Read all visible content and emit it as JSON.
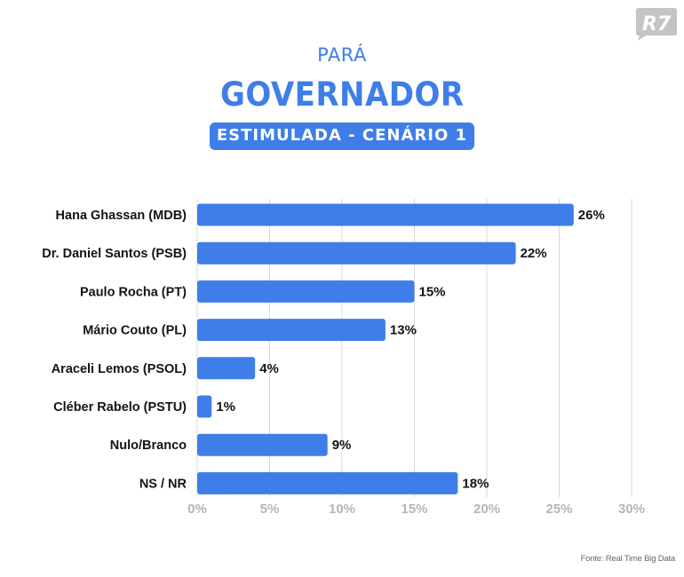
{
  "header": {
    "state": "PARÁ",
    "office": "GOVERNADOR",
    "scenario": "ESTIMULADA - CENÁRIO 1"
  },
  "logo": {
    "text": "R7",
    "color": "#c4c4c4"
  },
  "colors": {
    "bar": "#3f7ee8",
    "title": "#3f7ee8",
    "grid": "#d9d9d9",
    "tick": "#b5b5b5"
  },
  "chart_data": {
    "type": "bar",
    "orientation": "horizontal",
    "categories": [
      "Hana Ghassan (MDB)",
      "Dr. Daniel Santos (PSB)",
      "Paulo Rocha (PT)",
      "Mário Couto (PL)",
      "Araceli Lemos (PSOL)",
      "Cléber Rabelo (PSTU)",
      "Nulo/Branco",
      "NS / NR"
    ],
    "values": [
      26,
      22,
      15,
      13,
      4,
      1,
      9,
      18
    ],
    "value_labels": [
      "26%",
      "22%",
      "15%",
      "13%",
      "4%",
      "1%",
      "9%",
      "18%"
    ],
    "xlim": [
      0,
      30
    ],
    "xticks": [
      0,
      5,
      10,
      15,
      20,
      25,
      30
    ],
    "xtick_labels": [
      "0%",
      "5%",
      "10%",
      "15%",
      "20%",
      "25%",
      "30%"
    ],
    "grid": true,
    "legend": "none"
  },
  "source": "Fonte: Real Time Big Data"
}
